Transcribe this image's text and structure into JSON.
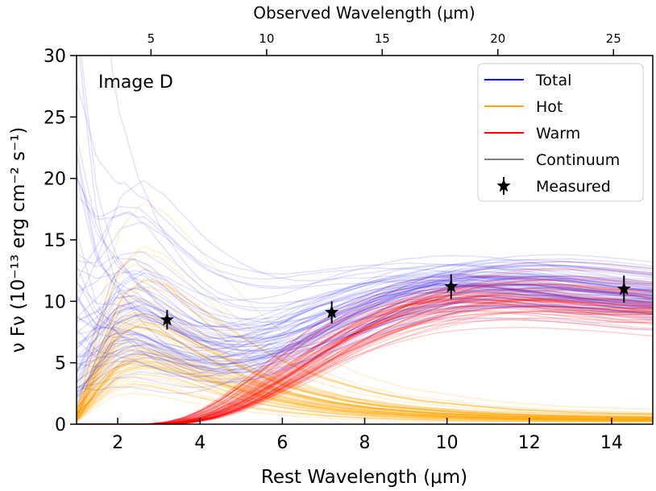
{
  "chart_data": {
    "type": "line",
    "panel_label": "Image D",
    "xlabel": "Rest Wavelength (μm)",
    "ylabel": "ν Fν (10⁻¹³ erg cm⁻² s⁻¹)",
    "top_xlabel": "Observed Wavelength (μm)",
    "xlim": [
      1,
      15
    ],
    "ylim": [
      0,
      30
    ],
    "x_ticks": [
      2,
      4,
      6,
      8,
      10,
      12,
      14
    ],
    "x_tick_labels": [
      "2",
      "4",
      "6",
      "8",
      "10",
      "12",
      "14"
    ],
    "y_ticks": [
      0,
      5,
      10,
      15,
      20,
      25,
      30
    ],
    "y_tick_labels": [
      "0",
      "5",
      "10",
      "15",
      "20",
      "25",
      "30"
    ],
    "top_ticks": [
      5,
      10,
      15,
      20,
      25
    ],
    "top_tick_labels": [
      "5",
      "10",
      "15",
      "20",
      "25"
    ],
    "observed_to_rest_ratio": 1.78,
    "legend_position": "top-right",
    "series": [
      {
        "name": "Total",
        "color": "#0000ff",
        "x": [
          1.0,
          1.5,
          2.0,
          2.5,
          3.0,
          3.5,
          4.0,
          4.5,
          5.0,
          5.5,
          6.0,
          6.5,
          7.0,
          7.5,
          8.0,
          8.5,
          9.0,
          9.5,
          10.0,
          10.5,
          11.0,
          11.5,
          12.0,
          12.5,
          13.0,
          13.5,
          14.0,
          14.5,
          15.0
        ],
        "y": [
          13.0,
          12.5,
          11.8,
          10.8,
          9.5,
          8.4,
          7.8,
          7.5,
          7.5,
          7.6,
          7.8,
          8.2,
          8.7,
          9.2,
          9.7,
          10.1,
          10.5,
          10.9,
          11.1,
          11.2,
          11.3,
          11.2,
          11.1,
          11.0,
          10.8,
          10.6,
          10.4,
          10.2,
          10.0
        ]
      },
      {
        "name": "Hot",
        "color": "#ffa500",
        "x": [
          1.0,
          1.5,
          2.0,
          2.5,
          3.0,
          3.5,
          4.0,
          4.5,
          5.0,
          5.5,
          6.0,
          6.5,
          7.0,
          7.5,
          8.0,
          8.5,
          9.0,
          9.5,
          10.0,
          10.5,
          11.0,
          11.5,
          12.0,
          12.5,
          13.0,
          13.5,
          14.0,
          14.5,
          15.0
        ],
        "y": [
          0.5,
          3.5,
          6.0,
          6.8,
          6.5,
          5.8,
          5.0,
          4.3,
          3.6,
          3.0,
          2.5,
          2.1,
          1.8,
          1.5,
          1.3,
          1.1,
          1.0,
          0.9,
          0.8,
          0.7,
          0.65,
          0.6,
          0.55,
          0.52,
          0.5,
          0.48,
          0.46,
          0.44,
          0.42
        ]
      },
      {
        "name": "Warm",
        "color": "#ff0000",
        "x": [
          1.0,
          1.5,
          2.0,
          2.5,
          3.0,
          3.5,
          4.0,
          4.5,
          5.0,
          5.5,
          6.0,
          6.5,
          7.0,
          7.5,
          8.0,
          8.5,
          9.0,
          9.5,
          10.0,
          10.5,
          11.0,
          11.5,
          12.0,
          12.5,
          13.0,
          13.5,
          14.0,
          14.5,
          15.0
        ],
        "y": [
          0.0,
          0.0,
          0.0,
          0.0,
          0.02,
          0.15,
          0.5,
          1.1,
          1.9,
          2.9,
          3.9,
          5.0,
          6.1,
          7.1,
          7.9,
          8.6,
          9.2,
          9.7,
          10.0,
          10.2,
          10.3,
          10.35,
          10.3,
          10.2,
          10.05,
          9.9,
          9.7,
          9.5,
          9.3
        ]
      },
      {
        "name": "Continuum",
        "color": "#808080",
        "x": [
          1.0,
          1.5,
          2.0,
          2.5,
          3.0,
          3.5,
          4.0,
          4.5,
          5.0,
          5.5,
          6.0,
          6.5,
          7.0,
          7.5,
          8.0,
          8.5,
          9.0,
          9.5,
          10.0,
          10.5,
          11.0,
          11.5,
          12.0,
          12.5,
          13.0,
          13.5,
          14.0,
          14.5,
          15.0
        ],
        "y": [
          10.0,
          5.5,
          3.3,
          2.3,
          1.7,
          1.35,
          1.1,
          0.95,
          0.85,
          0.77,
          0.7,
          0.65,
          0.6,
          0.57,
          0.54,
          0.51,
          0.49,
          0.47,
          0.45,
          0.44,
          0.43,
          0.42,
          0.41,
          0.4,
          0.39,
          0.38,
          0.38,
          0.37,
          0.36
        ]
      },
      {
        "name": "Measured",
        "color": "#000000",
        "marker": "star",
        "x": [
          3.2,
          7.2,
          10.1,
          14.3
        ],
        "y": [
          8.5,
          9.1,
          11.2,
          11.0
        ],
        "yerr": [
          0.8,
          0.9,
          1.0,
          1.1
        ]
      }
    ],
    "legend": [
      {
        "label": "Total",
        "color": "#0000ff",
        "symbol": "line"
      },
      {
        "label": "Hot",
        "color": "#ffa500",
        "symbol": "line"
      },
      {
        "label": "Warm",
        "color": "#ff0000",
        "symbol": "line"
      },
      {
        "label": "Continuum",
        "color": "#808080",
        "symbol": "line"
      },
      {
        "label": "Measured",
        "color": "#000000",
        "symbol": "star"
      }
    ]
  }
}
